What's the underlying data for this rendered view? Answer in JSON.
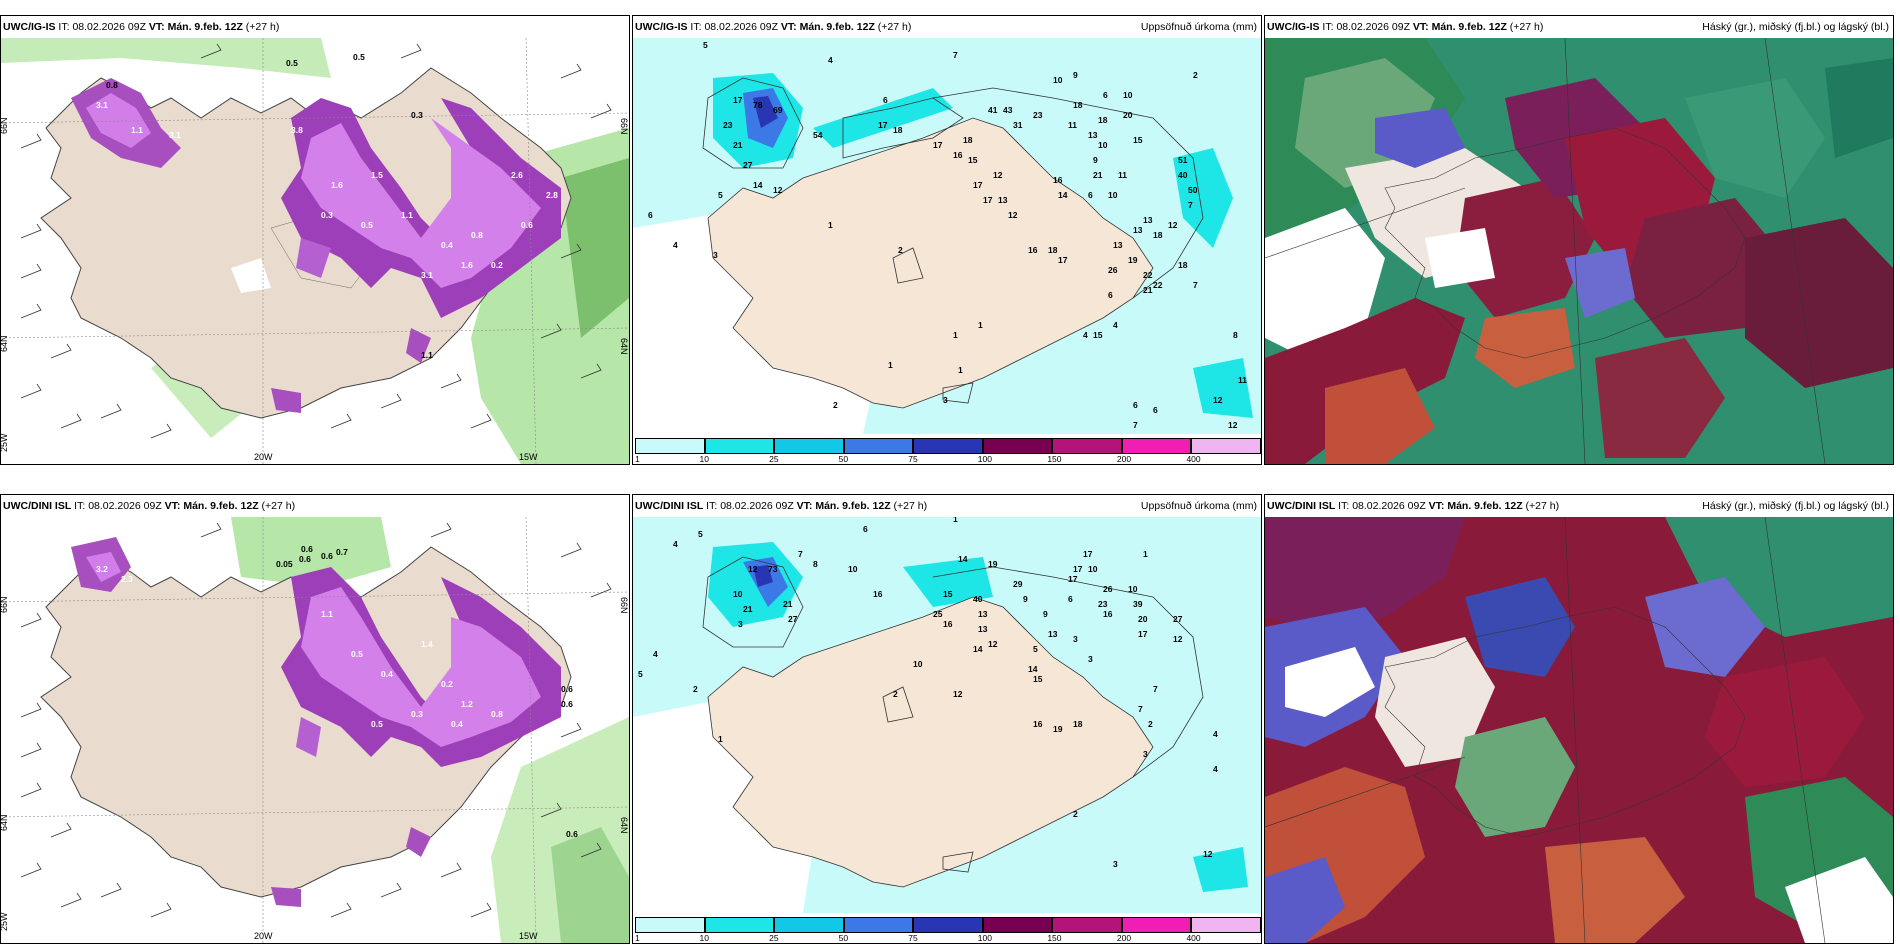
{
  "panels": [
    {
      "model": "UWC/IG-IS",
      "it_label": "IT:",
      "it": "08.02.2026 09Z",
      "vt_label": "VT:",
      "vt": "Mán. 9.feb. 12Z",
      "lead": "(+27 h)",
      "right": ""
    },
    {
      "model": "UWC/IG-IS",
      "it_label": "IT:",
      "it": "08.02.2026 09Z",
      "vt_label": "VT:",
      "vt": "Mán. 9.feb. 12Z",
      "lead": "(+27 h)",
      "right": "Uppsöfnuð úrkoma (mm)"
    },
    {
      "model": "UWC/IG-IS",
      "it_label": "IT:",
      "it": "08.02.2026 09Z",
      "vt_label": "VT:",
      "vt": "Mán. 9.feb. 12Z",
      "lead": "(+27 h)",
      "right": "Hásk‎ý (gr.), miðský (fj.bl.) og lágský (bl.)"
    },
    {
      "model": "UWC/DINI ISL",
      "it_label": "IT:",
      "it": "08.02.2026 09Z",
      "vt_label": "VT:",
      "vt": "Mán. 9.feb. 12Z",
      "lead": "(+27 h)",
      "right": ""
    },
    {
      "model": "UWC/DINI ISL",
      "it_label": "IT:",
      "it": "08.02.2026 09Z",
      "vt_label": "VT:",
      "vt": "Mán. 9.feb. 12Z",
      "lead": "(+27 h)",
      "right": "Uppsöfnuð úrkoma (mm)"
    },
    {
      "model": "UWC/DINI ISL",
      "it_label": "IT:",
      "it": "08.02.2026 09Z",
      "vt_label": "VT:",
      "vt": "Mán. 9.feb. 12Z",
      "lead": "(+27 h)",
      "right": "Hásk‎ý (gr.), miðský (fj.bl.) og lágský (bl.)"
    }
  ],
  "axes": {
    "lat_top": "66N",
    "lat_mid": "64N",
    "lat_bot": "25W",
    "lat_top_r": "66N",
    "lat_mid_r": "64N",
    "lon_a": "20W",
    "lon_b": "15W"
  },
  "colorbar": {
    "ticks": [
      "1",
      "10",
      "25",
      "50",
      "75",
      "100",
      "150",
      "200",
      "400"
    ],
    "colors": [
      "#c8fafa",
      "#1ee6e6",
      "#12c8e6",
      "#3c78e6",
      "#2836b4",
      "#780050",
      "#b4147a",
      "#f01eb4",
      "#f0b4f0"
    ]
  },
  "precip_top": [
    "5",
    "4",
    "7",
    "2",
    "6",
    "10",
    "9",
    "6",
    "18",
    "10",
    "17",
    "18",
    "78",
    "69",
    "54",
    "23",
    "21",
    "17",
    "41",
    "43",
    "31",
    "23",
    "11",
    "13",
    "18",
    "20",
    "17",
    "18",
    "16",
    "15",
    "51",
    "40",
    "27",
    "10",
    "9",
    "15",
    "21",
    "17",
    "13",
    "16",
    "14",
    "50",
    "12",
    "5",
    "7",
    "6",
    "12",
    "17",
    "12",
    "10",
    "14",
    "11",
    "6",
    "13",
    "12",
    "13",
    "18",
    "16",
    "18",
    "17",
    "26",
    "7",
    "8",
    "13",
    "4",
    "2",
    "1",
    "4",
    "3",
    "22",
    "19",
    "6",
    "18",
    "21",
    "22",
    "1",
    "1",
    "2",
    "1",
    "3",
    "7",
    "11",
    "12",
    "12",
    "6",
    "6",
    "4",
    "15",
    "1"
  ],
  "precip_bot": [
    "5",
    "4",
    "6",
    "7",
    "8",
    "1",
    "10",
    "10",
    "12",
    "73",
    "16",
    "14",
    "19",
    "17",
    "26",
    "17",
    "15",
    "21",
    "21",
    "27",
    "10",
    "23",
    "25",
    "16",
    "40",
    "13",
    "29",
    "9",
    "17",
    "13",
    "14",
    "12",
    "5",
    "3",
    "2",
    "4",
    "2",
    "6",
    "27",
    "39",
    "17",
    "16",
    "10",
    "20",
    "5",
    "3",
    "1",
    "3",
    "12",
    "12",
    "16",
    "19",
    "18",
    "13",
    "14",
    "15",
    "9",
    "10",
    "7",
    "7",
    "4",
    "4",
    "2",
    "3",
    "12",
    "3",
    "2",
    "1"
  ],
  "snow_top": [
    "0.5",
    "0.5",
    "0.8",
    "3.1",
    "1.1",
    "3.1",
    "3.8",
    "0.3",
    "1.6",
    "1.5",
    "2.6",
    "2.8",
    "0.3",
    "0.5",
    "1.1",
    "0.4",
    "0.8",
    "1.6",
    "3.1",
    "0.2",
    "0.6",
    "1.1"
  ],
  "snow_bot": [
    "0.6",
    "0.6",
    "0.05",
    "0.7",
    "0.6",
    "2.3",
    "3.2",
    "1.1",
    "0.5",
    "0.4",
    "1.4",
    "0.2",
    "1.2",
    "0.8",
    "0.6",
    "0.6",
    "0.5",
    "0.3",
    "0.4",
    "0.6"
  ]
}
